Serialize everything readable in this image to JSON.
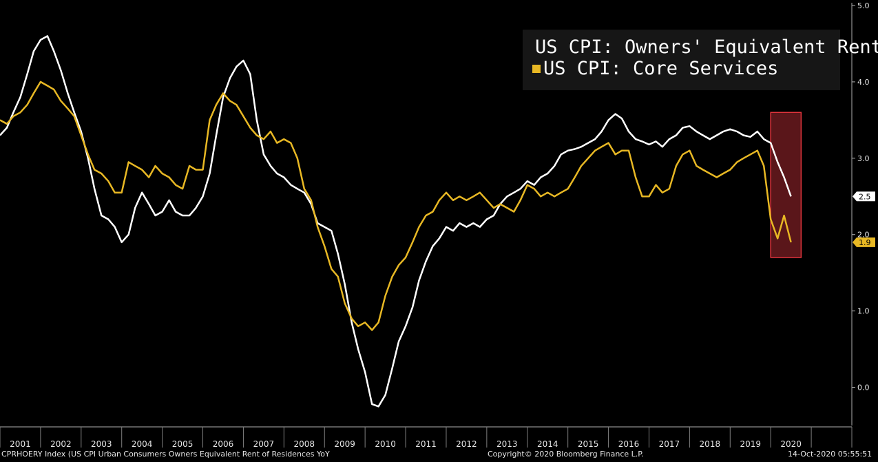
{
  "chart_data": {
    "type": "line",
    "x_range": [
      2000.0,
      2021.0
    ],
    "ylim": [
      -0.5,
      5.0
    ],
    "y_ticks": [
      "0.0",
      "1.0",
      "2.0",
      "3.0",
      "4.0",
      "5.0"
    ],
    "x_tick_labels": [
      "2001",
      "2002",
      "2003",
      "2004",
      "2005",
      "2006",
      "2007",
      "2008",
      "2009",
      "2010",
      "2011",
      "2012",
      "2013",
      "2014",
      "2015",
      "2016",
      "2017",
      "2018",
      "2019",
      "2020"
    ],
    "grid": false,
    "legend_position": "top-right",
    "series": [
      {
        "name": "US CPI: Owners' Equivalent Rent",
        "color": "#ffffff",
        "last_value_label": "2.5",
        "points": [
          [
            2000.0,
            3.3
          ],
          [
            2000.17,
            3.4
          ],
          [
            2000.33,
            3.6
          ],
          [
            2000.5,
            3.8
          ],
          [
            2000.67,
            4.1
          ],
          [
            2000.83,
            4.4
          ],
          [
            2001.0,
            4.55
          ],
          [
            2001.17,
            4.6
          ],
          [
            2001.33,
            4.4
          ],
          [
            2001.5,
            4.15
          ],
          [
            2001.67,
            3.85
          ],
          [
            2001.83,
            3.6
          ],
          [
            2002.0,
            3.35
          ],
          [
            2002.17,
            3.0
          ],
          [
            2002.33,
            2.6
          ],
          [
            2002.5,
            2.25
          ],
          [
            2002.67,
            2.2
          ],
          [
            2002.83,
            2.1
          ],
          [
            2003.0,
            1.9
          ],
          [
            2003.17,
            2.0
          ],
          [
            2003.33,
            2.35
          ],
          [
            2003.5,
            2.55
          ],
          [
            2003.67,
            2.4
          ],
          [
            2003.83,
            2.25
          ],
          [
            2004.0,
            2.3
          ],
          [
            2004.17,
            2.45
          ],
          [
            2004.33,
            2.3
          ],
          [
            2004.5,
            2.25
          ],
          [
            2004.67,
            2.25
          ],
          [
            2004.83,
            2.35
          ],
          [
            2005.0,
            2.5
          ],
          [
            2005.17,
            2.8
          ],
          [
            2005.33,
            3.3
          ],
          [
            2005.5,
            3.8
          ],
          [
            2005.67,
            4.05
          ],
          [
            2005.83,
            4.2
          ],
          [
            2006.0,
            4.28
          ],
          [
            2006.17,
            4.1
          ],
          [
            2006.33,
            3.5
          ],
          [
            2006.5,
            3.05
          ],
          [
            2006.67,
            2.9
          ],
          [
            2006.83,
            2.8
          ],
          [
            2007.0,
            2.75
          ],
          [
            2007.17,
            2.65
          ],
          [
            2007.33,
            2.6
          ],
          [
            2007.5,
            2.55
          ],
          [
            2007.67,
            2.4
          ],
          [
            2007.83,
            2.15
          ],
          [
            2008.0,
            2.1
          ],
          [
            2008.17,
            2.05
          ],
          [
            2008.33,
            1.75
          ],
          [
            2008.5,
            1.35
          ],
          [
            2008.67,
            0.85
          ],
          [
            2008.83,
            0.5
          ],
          [
            2009.0,
            0.2
          ],
          [
            2009.17,
            -0.22
          ],
          [
            2009.33,
            -0.25
          ],
          [
            2009.5,
            -0.1
          ],
          [
            2009.67,
            0.25
          ],
          [
            2009.83,
            0.6
          ],
          [
            2010.0,
            0.8
          ],
          [
            2010.17,
            1.05
          ],
          [
            2010.33,
            1.4
          ],
          [
            2010.5,
            1.65
          ],
          [
            2010.67,
            1.85
          ],
          [
            2010.83,
            1.95
          ],
          [
            2011.0,
            2.1
          ],
          [
            2011.17,
            2.05
          ],
          [
            2011.33,
            2.15
          ],
          [
            2011.5,
            2.1
          ],
          [
            2011.67,
            2.15
          ],
          [
            2011.83,
            2.1
          ],
          [
            2012.0,
            2.2
          ],
          [
            2012.17,
            2.25
          ],
          [
            2012.33,
            2.4
          ],
          [
            2012.5,
            2.5
          ],
          [
            2012.67,
            2.55
          ],
          [
            2012.83,
            2.6
          ],
          [
            2013.0,
            2.7
          ],
          [
            2013.17,
            2.65
          ],
          [
            2013.33,
            2.75
          ],
          [
            2013.5,
            2.8
          ],
          [
            2013.67,
            2.9
          ],
          [
            2013.83,
            3.05
          ],
          [
            2014.0,
            3.1
          ],
          [
            2014.17,
            3.12
          ],
          [
            2014.33,
            3.15
          ],
          [
            2014.5,
            3.2
          ],
          [
            2014.67,
            3.25
          ],
          [
            2014.83,
            3.35
          ],
          [
            2015.0,
            3.5
          ],
          [
            2015.17,
            3.58
          ],
          [
            2015.33,
            3.52
          ],
          [
            2015.5,
            3.35
          ],
          [
            2015.67,
            3.25
          ],
          [
            2015.83,
            3.22
          ],
          [
            2016.0,
            3.18
          ],
          [
            2016.17,
            3.22
          ],
          [
            2016.33,
            3.15
          ],
          [
            2016.5,
            3.25
          ],
          [
            2016.67,
            3.3
          ],
          [
            2016.83,
            3.4
          ],
          [
            2017.0,
            3.42
          ],
          [
            2017.17,
            3.35
          ],
          [
            2017.33,
            3.3
          ],
          [
            2017.5,
            3.25
          ],
          [
            2017.67,
            3.3
          ],
          [
            2017.83,
            3.35
          ],
          [
            2018.0,
            3.38
          ],
          [
            2018.17,
            3.35
          ],
          [
            2018.33,
            3.3
          ],
          [
            2018.5,
            3.28
          ],
          [
            2018.67,
            3.35
          ],
          [
            2018.83,
            3.25
          ],
          [
            2019.0,
            3.2
          ],
          [
            2019.17,
            2.95
          ],
          [
            2019.33,
            2.75
          ],
          [
            2019.5,
            2.5
          ]
        ]
      },
      {
        "name": "US CPI: Core Services",
        "color": "#e8b824",
        "last_value_label": "1.9",
        "points": [
          [
            2000.0,
            3.5
          ],
          [
            2000.17,
            3.45
          ],
          [
            2000.33,
            3.55
          ],
          [
            2000.5,
            3.6
          ],
          [
            2000.67,
            3.7
          ],
          [
            2000.83,
            3.85
          ],
          [
            2001.0,
            4.0
          ],
          [
            2001.17,
            3.95
          ],
          [
            2001.33,
            3.9
          ],
          [
            2001.5,
            3.75
          ],
          [
            2001.67,
            3.65
          ],
          [
            2001.83,
            3.55
          ],
          [
            2002.0,
            3.3
          ],
          [
            2002.17,
            3.05
          ],
          [
            2002.33,
            2.85
          ],
          [
            2002.5,
            2.8
          ],
          [
            2002.67,
            2.7
          ],
          [
            2002.83,
            2.55
          ],
          [
            2003.0,
            2.55
          ],
          [
            2003.17,
            2.95
          ],
          [
            2003.33,
            2.9
          ],
          [
            2003.5,
            2.85
          ],
          [
            2003.67,
            2.75
          ],
          [
            2003.83,
            2.9
          ],
          [
            2004.0,
            2.8
          ],
          [
            2004.17,
            2.75
          ],
          [
            2004.33,
            2.65
          ],
          [
            2004.5,
            2.6
          ],
          [
            2004.67,
            2.9
          ],
          [
            2004.83,
            2.85
          ],
          [
            2005.0,
            2.85
          ],
          [
            2005.17,
            3.5
          ],
          [
            2005.33,
            3.7
          ],
          [
            2005.5,
            3.85
          ],
          [
            2005.67,
            3.75
          ],
          [
            2005.83,
            3.7
          ],
          [
            2006.0,
            3.55
          ],
          [
            2006.17,
            3.4
          ],
          [
            2006.33,
            3.3
          ],
          [
            2006.5,
            3.25
          ],
          [
            2006.67,
            3.35
          ],
          [
            2006.83,
            3.2
          ],
          [
            2007.0,
            3.25
          ],
          [
            2007.17,
            3.2
          ],
          [
            2007.33,
            3.0
          ],
          [
            2007.5,
            2.6
          ],
          [
            2007.67,
            2.45
          ],
          [
            2007.83,
            2.1
          ],
          [
            2008.0,
            1.85
          ],
          [
            2008.17,
            1.55
          ],
          [
            2008.33,
            1.45
          ],
          [
            2008.5,
            1.1
          ],
          [
            2008.67,
            0.9
          ],
          [
            2008.83,
            0.8
          ],
          [
            2009.0,
            0.85
          ],
          [
            2009.17,
            0.75
          ],
          [
            2009.33,
            0.85
          ],
          [
            2009.5,
            1.2
          ],
          [
            2009.67,
            1.45
          ],
          [
            2009.83,
            1.6
          ],
          [
            2010.0,
            1.7
          ],
          [
            2010.17,
            1.9
          ],
          [
            2010.33,
            2.1
          ],
          [
            2010.5,
            2.25
          ],
          [
            2010.67,
            2.3
          ],
          [
            2010.83,
            2.45
          ],
          [
            2011.0,
            2.55
          ],
          [
            2011.17,
            2.45
          ],
          [
            2011.33,
            2.5
          ],
          [
            2011.5,
            2.45
          ],
          [
            2011.67,
            2.5
          ],
          [
            2011.83,
            2.55
          ],
          [
            2012.0,
            2.45
          ],
          [
            2012.17,
            2.35
          ],
          [
            2012.33,
            2.4
          ],
          [
            2012.5,
            2.35
          ],
          [
            2012.67,
            2.3
          ],
          [
            2012.83,
            2.45
          ],
          [
            2013.0,
            2.65
          ],
          [
            2013.17,
            2.6
          ],
          [
            2013.33,
            2.5
          ],
          [
            2013.5,
            2.55
          ],
          [
            2013.67,
            2.5
          ],
          [
            2013.83,
            2.55
          ],
          [
            2014.0,
            2.6
          ],
          [
            2014.17,
            2.75
          ],
          [
            2014.33,
            2.9
          ],
          [
            2014.5,
            3.0
          ],
          [
            2014.67,
            3.1
          ],
          [
            2014.83,
            3.15
          ],
          [
            2015.0,
            3.2
          ],
          [
            2015.17,
            3.05
          ],
          [
            2015.33,
            3.1
          ],
          [
            2015.5,
            3.1
          ],
          [
            2015.67,
            2.75
          ],
          [
            2015.83,
            2.5
          ],
          [
            2016.0,
            2.5
          ],
          [
            2016.17,
            2.65
          ],
          [
            2016.33,
            2.55
          ],
          [
            2016.5,
            2.6
          ],
          [
            2016.67,
            2.9
          ],
          [
            2016.83,
            3.05
          ],
          [
            2017.0,
            3.1
          ],
          [
            2017.17,
            2.9
          ],
          [
            2017.33,
            2.85
          ],
          [
            2017.5,
            2.8
          ],
          [
            2017.67,
            2.75
          ],
          [
            2017.83,
            2.8
          ],
          [
            2018.0,
            2.85
          ],
          [
            2018.17,
            2.95
          ],
          [
            2018.33,
            3.0
          ],
          [
            2018.5,
            3.05
          ],
          [
            2018.67,
            3.1
          ],
          [
            2018.83,
            2.9
          ],
          [
            2019.0,
            2.2
          ],
          [
            2019.17,
            1.95
          ],
          [
            2019.33,
            2.25
          ],
          [
            2019.5,
            1.9
          ]
        ]
      }
    ],
    "highlight": {
      "x_range": [
        2019.0,
        2019.75
      ],
      "y_range": [
        1.7,
        3.6
      ],
      "color": "#c8303a"
    },
    "title": "",
    "xlabel": "",
    "ylabel": ""
  },
  "legend": {
    "entry1": "US CPI: Owners' Equivalent Rent",
    "entry2": "US CPI: Core Services"
  },
  "footer": {
    "left": "CPRHOERY Index (US CPI Urban Consumers Owners Equivalent Rent of Residences YoY",
    "center": "Copyright© 2020 Bloomberg Finance L.P.",
    "right": "14-Oct-2020 05:55:51"
  }
}
